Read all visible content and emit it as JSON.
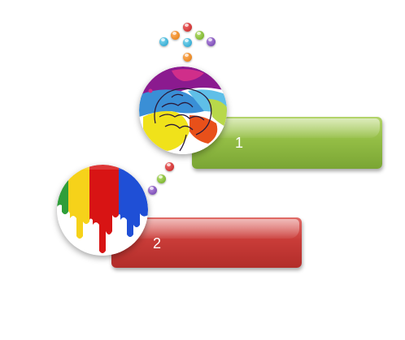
{
  "steps": [
    {
      "label": "1",
      "color": "#93bd45"
    },
    {
      "label": "2",
      "color": "#c93c38"
    }
  ],
  "icons": {
    "top": "brain-paint-splash-icon",
    "bottom": "rainbow-paint-drip-icon"
  }
}
